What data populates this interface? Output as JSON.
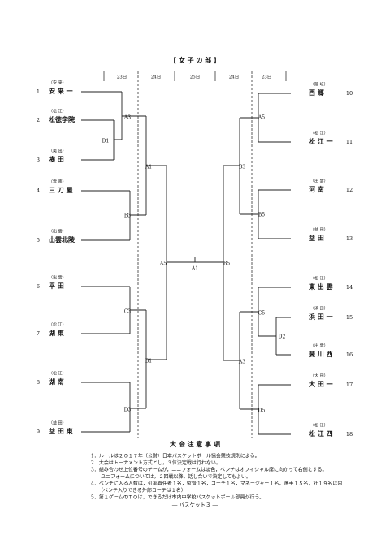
{
  "header": {
    "title": "【 女 子 の 部 】",
    "days": [
      "23日",
      "24日",
      "25日",
      "24日",
      "23日"
    ]
  },
  "teams": [
    {
      "number": 1,
      "name": "安 来 一",
      "area": "（安 来）"
    },
    {
      "number": 2,
      "name": "松徳学院",
      "area": "（松 江）"
    },
    {
      "number": 3,
      "name": "横 田",
      "area": "（奥 出）"
    },
    {
      "number": 4,
      "name": "三 刀 屋",
      "area": "（雲 南）"
    },
    {
      "number": 5,
      "name": "出雲北陵",
      "area": "（出 雲）"
    },
    {
      "number": 6,
      "name": "平 田",
      "area": "（出 雲）"
    },
    {
      "number": 7,
      "name": "湖 東",
      "area": "（松 江）"
    },
    {
      "number": 8,
      "name": "湖 南",
      "area": "（松 江）"
    },
    {
      "number": 9,
      "name": "益 田 東",
      "area": "（益 田）"
    },
    {
      "number": 10,
      "name": "西 郷",
      "area": "（隠 岐）"
    },
    {
      "number": 11,
      "name": "松 江 一",
      "area": "（松 江）"
    },
    {
      "number": 12,
      "name": "河 南",
      "area": "（出 雲）"
    },
    {
      "number": 13,
      "name": "益 田",
      "area": "（益 田）"
    },
    {
      "number": 14,
      "name": "東 出 雲",
      "area": "（松 江）"
    },
    {
      "number": 15,
      "name": "浜 田 一",
      "area": "（浜 田）"
    },
    {
      "number": 16,
      "name": "斐 川 西",
      "area": "（出 雲）"
    },
    {
      "number": 17,
      "name": "大 田 一",
      "area": "（大 田）"
    },
    {
      "number": 18,
      "name": "松 江 四",
      "area": "（松 江）"
    }
  ],
  "matches": [
    "D1",
    "A3",
    "B3",
    "A1",
    "C3",
    "D3",
    "B1",
    "A5",
    "A1",
    "A5",
    "B5",
    "B3",
    "D2",
    "C5",
    "D5",
    "A3",
    "B5"
  ],
  "notes": {
    "title": "大 会 注 意 事 項",
    "lines": [
      "1．ルールは２０１７年（公財）日本バスケットボール協会競技規則による。",
      "2．大会はトーナメント方式とし，３位決定戦は行わない。",
      "3．組み合わせ上位番号のチームが，ユニフォームは淡色，ベンチはオフィシャル席に向かって右側とする。",
      "　　ユニフォームについては，２回戦以降，話し合いで決定してもよい。",
      "4．ベンチに入る人数は，引率責任者１名，監督１名，コーチ１名，マネージャー１名，選手１５名，計１９名以内",
      "　　（ベンチ入りできる外部コーチは１名）",
      "5．第１ゲームのＴＯは，できるだけ市内中学校バスケットボール部員が行う。"
    ]
  },
  "footer": "― バスケット３ ―"
}
